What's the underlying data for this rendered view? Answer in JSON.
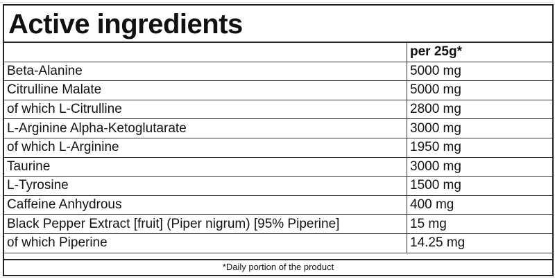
{
  "title": "Active ingredients",
  "column_header": "per 25g*",
  "rows": [
    {
      "name": "Beta-Alanine",
      "amount": "5000 mg"
    },
    {
      "name": "Citrulline Malate",
      "amount": "5000 mg"
    },
    {
      "name": "of which L-Citrulline",
      "amount": "2800 mg"
    },
    {
      "name": "L-Arginine Alpha-Ketoglutarate",
      "amount": "3000 mg"
    },
    {
      "name": "of which L-Arginine",
      "amount": "1950 mg"
    },
    {
      "name": "Taurine",
      "amount": "3000 mg"
    },
    {
      "name": "L-Tyrosine",
      "amount": "1500 mg"
    },
    {
      "name": "Caffeine Anhydrous",
      "amount": "400 mg"
    },
    {
      "name": "Black Pepper Extract [fruit] (Piper nigrum) [95% Piperine]",
      "amount": "15 mg"
    },
    {
      "name": "of which Piperine",
      "amount": "14.25 mg"
    }
  ],
  "footnote": "*Daily portion of the product"
}
